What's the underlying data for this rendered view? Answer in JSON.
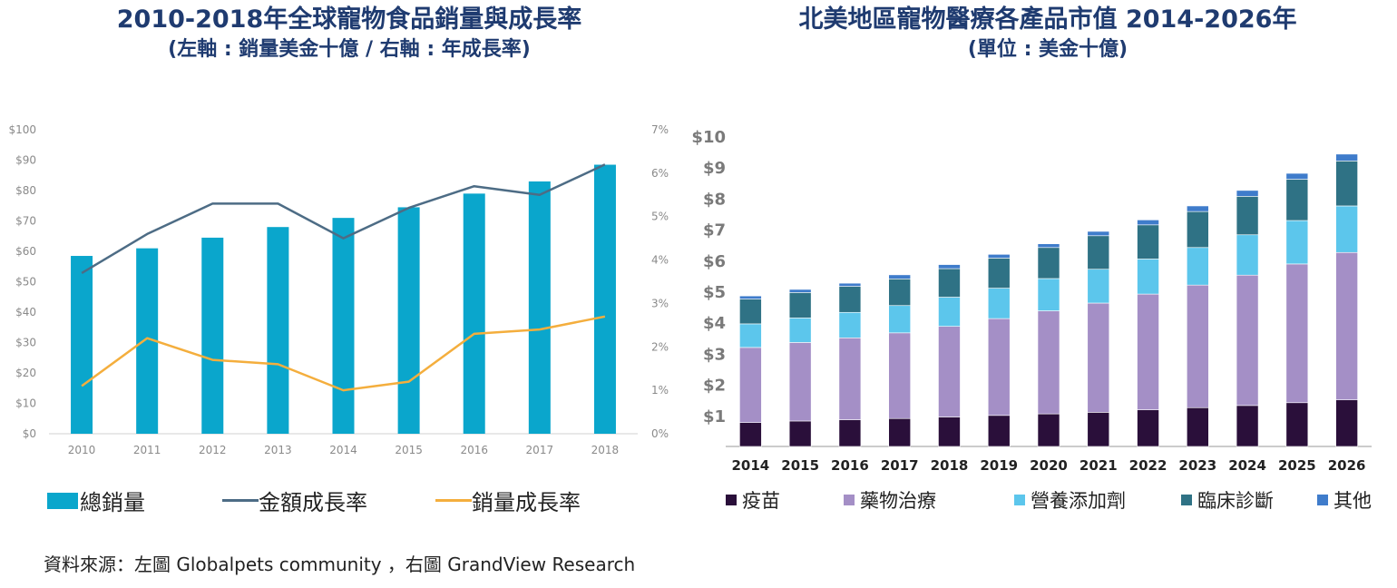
{
  "chart_data": [
    {
      "type": "bar",
      "title": "2010-2018年全球寵物食品銷量與成長率",
      "subtitle": "(左軸 : 銷量美金十億 / 右軸 : 年成長率)",
      "categories": [
        "2010",
        "2011",
        "2012",
        "2013",
        "2014",
        "2015",
        "2016",
        "2017",
        "2018"
      ],
      "ylim": [
        0,
        100
      ],
      "y2lim": [
        0,
        7
      ],
      "yticks": [
        "$0",
        "$10",
        "$20",
        "$30",
        "$40",
        "$50",
        "$60",
        "$70",
        "$80",
        "$90",
        "$100"
      ],
      "y2ticks": [
        "0%",
        "1%",
        "2%",
        "3%",
        "4%",
        "5%",
        "6%",
        "7%"
      ],
      "series": [
        {
          "name": "總銷量",
          "kind": "bar",
          "axis": "left",
          "color": "#0aa6cc",
          "values": [
            58.5,
            61,
            64.5,
            68,
            71,
            74.5,
            79,
            83,
            88.5
          ]
        },
        {
          "name": "金額成長率",
          "kind": "line",
          "axis": "right",
          "color": "#4d6c85",
          "values": [
            3.7,
            4.6,
            5.3,
            5.3,
            4.5,
            5.2,
            5.7,
            5.5,
            6.2
          ]
        },
        {
          "name": "銷量成長率",
          "kind": "line",
          "axis": "right",
          "color": "#f4ae3d",
          "values": [
            1.1,
            2.2,
            1.7,
            1.6,
            1.0,
            1.2,
            2.3,
            2.4,
            2.7
          ]
        }
      ],
      "legend_position": "bottom",
      "grid": false
    },
    {
      "type": "bar",
      "stacked": true,
      "title": "北美地區寵物醫療各產品市值 2014-2026年",
      "subtitle": "(單位 : 美金十億)",
      "categories": [
        "2014",
        "2015",
        "2016",
        "2017",
        "2018",
        "2019",
        "2020",
        "2021",
        "2022",
        "2023",
        "2024",
        "2025",
        "2026"
      ],
      "ylim": [
        0,
        10
      ],
      "yticks": [
        "$1",
        "$2",
        "$3",
        "$4",
        "$5",
        "$6",
        "$7",
        "$8",
        "$9",
        "$10"
      ],
      "series": [
        {
          "name": "疫苗",
          "color": "#2a0f3a",
          "values": [
            0.77,
            0.82,
            0.86,
            0.9,
            0.95,
            1.0,
            1.05,
            1.1,
            1.18,
            1.25,
            1.32,
            1.41,
            1.5
          ]
        },
        {
          "name": "藥物治療",
          "color": "#a48fc6",
          "values": [
            2.42,
            2.53,
            2.64,
            2.76,
            2.92,
            3.12,
            3.32,
            3.52,
            3.73,
            3.95,
            4.2,
            4.47,
            4.75
          ]
        },
        {
          "name": "營養添加劑",
          "color": "#5cc6ec",
          "values": [
            0.76,
            0.79,
            0.82,
            0.88,
            0.94,
            0.98,
            1.04,
            1.09,
            1.13,
            1.21,
            1.3,
            1.4,
            1.5
          ]
        },
        {
          "name": "臨床診斷",
          "color": "#2f7285",
          "values": [
            0.8,
            0.82,
            0.84,
            0.86,
            0.92,
            0.97,
            1.0,
            1.08,
            1.1,
            1.16,
            1.24,
            1.33,
            1.45
          ]
        },
        {
          "name": "其他",
          "color": "#3f7ccb",
          "values": [
            0.1,
            0.1,
            0.1,
            0.13,
            0.13,
            0.12,
            0.12,
            0.14,
            0.16,
            0.18,
            0.19,
            0.19,
            0.22
          ]
        }
      ],
      "legend_position": "bottom",
      "grid": false
    }
  ],
  "source_text": "資料來源：左圖 Globalpets community ，右圖 GrandView Research"
}
